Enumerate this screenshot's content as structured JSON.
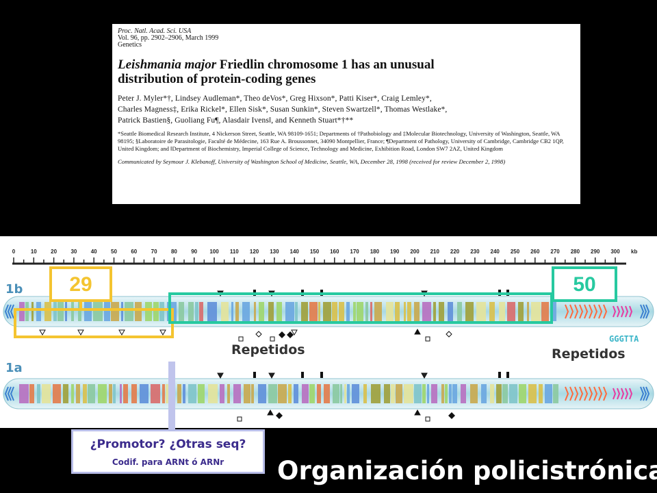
{
  "paper": {
    "journal_line1": "Proc. Natl. Acad. Sci. USA",
    "journal_line2": "Vol. 96, pp. 2902–2906, March 1999",
    "journal_line3": "Genetics",
    "title_species": "Leishmania major",
    "title_rest": " Friedlin chromosome 1 has an unusual",
    "title_line2": "distribution of protein-coding genes",
    "authors_line1": "Peter J. Myler*†, Lindsey Audleman*, Theo deVos*, Greg Hixson*, Patti Kiser*, Craig Lemley*,",
    "authors_line2": "Charles Magness‡, Erika Rickel*, Ellen Sisk*, Susan Sunkin*, Steven Swartzell*, Thomas Westlake*,",
    "authors_line3": "Patrick Bastien§, Guoliang Fu¶, Alasdair Ivens‖, and Kenneth Stuart*†**",
    "affiliations": "*Seattle Biomedical Research Institute, 4 Nickerson Street, Seattle, WA 98109-1651; Departments of †Pathobiology and ‡Molecular Biotechnology, University of Washington, Seattle, WA 98195; §Laboratoire de Parasitologie, Faculté de Médecine, 163 Rue A. Broussonnet, 34090 Montpellier, France; ¶Department of Pathology, University of Cambridge, Cambridge CB2 1QP, United Kingdom; and ‖Department of Biochemistry, Imperial College of Science, Technology and Medicine, Exhibition Road, London SW7 2AZ, United Kingdom",
    "communicated": "Communicated by Seymour J. Klebanoff, University of Washington School of Medicine, Seattle, WA, December 28, 1998 (received for review December 2, 1998)"
  },
  "scale": {
    "ticks": [
      "0",
      "10",
      "20",
      "30",
      "40",
      "50",
      "60",
      "70",
      "80",
      "90",
      "100",
      "110",
      "120",
      "130",
      "140",
      "150",
      "160",
      "170",
      "180",
      "190",
      "200",
      "210",
      "220",
      "230",
      "240",
      "250",
      "260",
      "270",
      "280",
      "290",
      "300"
    ],
    "unit": "kb"
  },
  "chromosomes": [
    {
      "label": "1b"
    },
    {
      "label": "1a"
    }
  ],
  "callouts": {
    "left_count": "29",
    "right_count": "50",
    "repeats_left": "Repetidos",
    "repeats_right": "Repetidos",
    "telomere_seq": "GGGTTA"
  },
  "promoter_box": {
    "line1": "¿Promotor? ¿Otras seq?",
    "line2": "Codif. para ARNt ó ARNr"
  },
  "slide_title": "Organización policistrónica",
  "colors": {
    "left_cluster_box": "#f4c430",
    "right_cluster_box": "#27c9a0",
    "telomere_repeat": "#ff6a3d",
    "pink_repeat": "#e83aa0",
    "chromosome_body": "#b8e0ea"
  }
}
